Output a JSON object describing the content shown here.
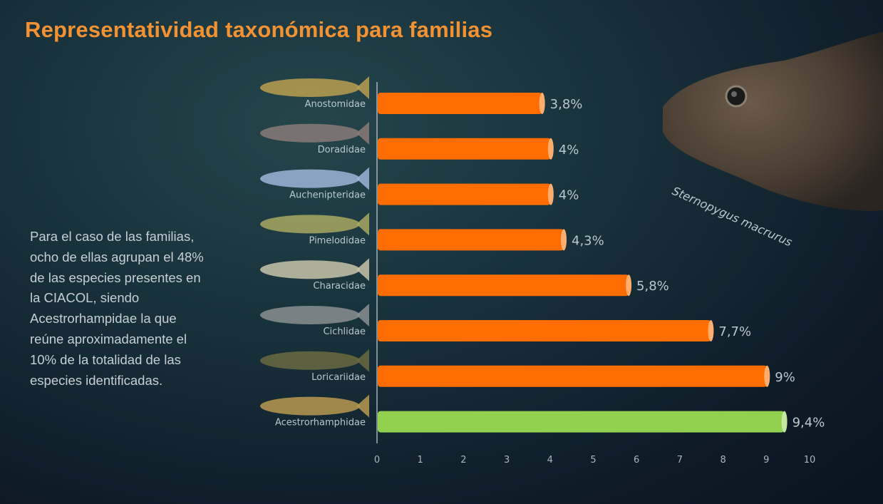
{
  "title": "Representatividad taxonómica para familias",
  "description": "Para el caso de las familias, ocho de ellas agrupan el 48% de las especies presentes en la CIACOL, siendo Acestrorhampidae la que reúne aproximadamente el 10% de la totalidad de las especies identificadas.",
  "species_label": "Sternopygus macrurus",
  "colors": {
    "title": "#f39233",
    "bar": "#ff6d00",
    "highlight": "#92d050"
  },
  "chart_data": {
    "type": "bar",
    "orientation": "horizontal",
    "categories": [
      "Anostomidae",
      "Doradidae",
      "Auchenipteridae",
      "Pimelodidae",
      "Characidae",
      "Cichlidae",
      "Loricariidae",
      "Acestrorhamphidae"
    ],
    "values": [
      3.8,
      4,
      4,
      4.3,
      5.8,
      7.7,
      9,
      9.4
    ],
    "labels": [
      "3,8%",
      "4%",
      "4%",
      "4,3%",
      "5,8%",
      "7,7%",
      "9%",
      "9,4%"
    ],
    "highlight_index": 7,
    "xlim": [
      0,
      10
    ],
    "xticks": [
      "0",
      "1",
      "2",
      "3",
      "4",
      "5",
      "6",
      "7",
      "8",
      "9",
      "10"
    ],
    "grid": false
  }
}
